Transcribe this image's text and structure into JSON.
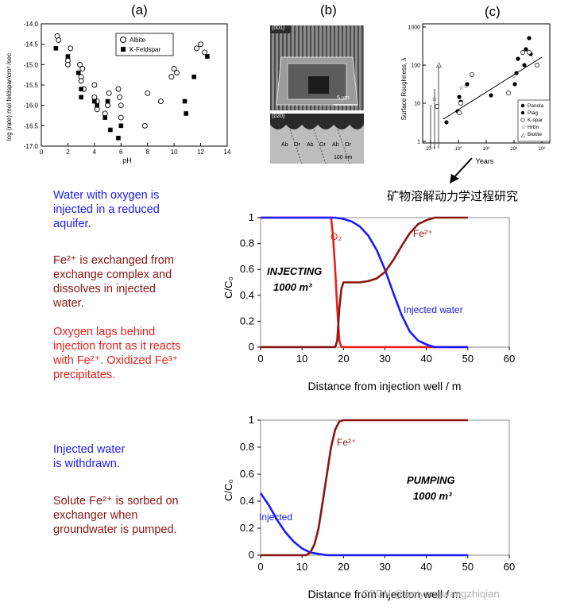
{
  "panels": {
    "a": "(a)",
    "b": "(b)",
    "c": "(c)"
  },
  "panel_a": {
    "ylabel": "log (rate) mol feldspar/cm² /sec",
    "xlabel": "pH",
    "yticks": [
      "-14.0",
      "-14.5",
      "-15.0",
      "-15.5",
      "-16.0",
      "-16.5",
      "-17.0"
    ],
    "xticks": [
      "0",
      "2",
      "4",
      "6",
      "8",
      "10",
      "12",
      "14"
    ],
    "legend": [
      "Albite",
      "K-Feldspar"
    ]
  },
  "panel_b": {
    "top_tag": "(001)",
    "scale_top": "5 µm",
    "bottom_tag": "(020)",
    "scale_bottom": "100 nm",
    "phases": [
      "Ab",
      "Or",
      "Ab",
      "Or",
      "Ab",
      "Or"
    ]
  },
  "panel_c": {
    "ylabel": "Surface Roughness, λ",
    "xlabel": "Years",
    "yticks": [
      "1000",
      "100",
      "10",
      "1"
    ],
    "xticks": [
      "10⁻²",
      "10⁰",
      "10²",
      "10⁴",
      "10⁶"
    ],
    "legend": [
      "Panola",
      "Plag",
      "K-spar",
      "Hrbn",
      "Biotite"
    ]
  },
  "caption": "矿物溶解动力学过程研究",
  "notes_inject": {
    "p1": "Water with oxygen is\ninjected in a reduced\naquifer.",
    "p2": "Fe²⁺  is exchanged from\nexchange complex and\ndissolves in injected\nwater.",
    "p3": "Oxygen lags behind\ninjection front as it reacts\nwith Fe²⁺. Oxidized Fe³⁺\nprecipitates."
  },
  "notes_pump": {
    "p1": "Injected water\nis withdrawn.",
    "p2": "Solute Fe²⁺ is sorbed on\nexchanger when\ngroundwater is pumped."
  },
  "chart_data": [
    {
      "type": "line",
      "title": "INJECTING 1000 m³",
      "xlabel": "Distance from injection well / m",
      "ylabel": "C/C₀",
      "xlim": [
        0,
        60
      ],
      "ylim": [
        0,
        1
      ],
      "xticks": [
        "0",
        "10",
        "20",
        "30",
        "40",
        "50",
        "60"
      ],
      "yticks": [
        "0",
        "0.2",
        "0.4",
        "0.6",
        "0.8",
        "1"
      ],
      "series": [
        {
          "name": "O₂",
          "color": "#e8201a",
          "x": [
            0,
            17,
            17.5,
            18,
            18.5,
            19,
            19.5,
            50
          ],
          "y": [
            1,
            1,
            0.85,
            0.6,
            0.3,
            0.05,
            0,
            0
          ]
        },
        {
          "name": "Injected water",
          "color": "#1a1aff",
          "x": [
            0,
            14,
            18,
            20,
            22,
            24,
            26,
            28,
            30,
            32,
            34,
            36,
            38,
            40,
            42,
            50
          ],
          "y": [
            1,
            1,
            1,
            0.99,
            0.97,
            0.93,
            0.86,
            0.75,
            0.6,
            0.42,
            0.25,
            0.12,
            0.05,
            0.02,
            0,
            0
          ]
        },
        {
          "name": "Fe²⁺",
          "color": "#8a1515",
          "x": [
            0,
            18,
            18.5,
            19,
            19.5,
            20,
            22,
            24,
            26,
            28,
            30,
            32,
            34,
            36,
            38,
            40,
            42,
            44,
            50
          ],
          "y": [
            0,
            0,
            0.05,
            0.3,
            0.45,
            0.5,
            0.5,
            0.5,
            0.51,
            0.53,
            0.58,
            0.67,
            0.78,
            0.88,
            0.95,
            0.98,
            1,
            1,
            1
          ]
        }
      ]
    },
    {
      "type": "line",
      "title": "PUMPING 1000 m³",
      "xlabel": "Distance from injection well / m",
      "ylabel": "C/C₀",
      "xlim": [
        0,
        60
      ],
      "ylim": [
        0,
        1
      ],
      "xticks": [
        "0",
        "10",
        "20",
        "30",
        "40",
        "50",
        "60"
      ],
      "yticks": [
        "0",
        "0.2",
        "0.4",
        "0.6",
        "0.8",
        "1"
      ],
      "series": [
        {
          "name": "Injected",
          "color": "#1a1aff",
          "x": [
            0,
            2,
            4,
            6,
            8,
            10,
            12,
            14,
            16,
            50
          ],
          "y": [
            0.46,
            0.37,
            0.26,
            0.17,
            0.1,
            0.05,
            0.02,
            0.01,
            0,
            0
          ]
        },
        {
          "name": "Fe²⁺",
          "color": "#8a1515",
          "x": [
            0,
            11,
            12,
            13,
            14,
            15,
            16,
            17,
            18,
            19,
            20,
            21,
            50
          ],
          "y": [
            0,
            0,
            0.02,
            0.08,
            0.2,
            0.4,
            0.6,
            0.8,
            0.93,
            0.99,
            1,
            1,
            1
          ]
        }
      ]
    }
  ],
  "watermark": "CSDN @weiyongwangzhiqian"
}
